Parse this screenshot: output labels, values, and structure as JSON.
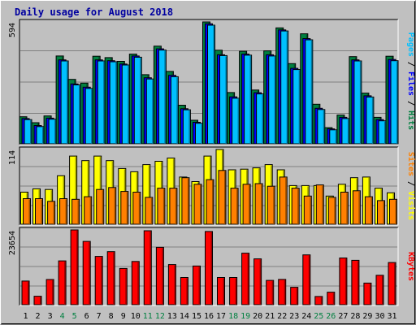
{
  "chart_data": {
    "type": "bar",
    "title": "Daily usage for August 2018",
    "categories": [
      "1",
      "2",
      "3",
      "4",
      "5",
      "6",
      "7",
      "8",
      "9",
      "10",
      "11",
      "12",
      "13",
      "14",
      "15",
      "16",
      "17",
      "18",
      "19",
      "20",
      "21",
      "22",
      "23",
      "24",
      "25",
      "26",
      "27",
      "28",
      "29",
      "30",
      "31"
    ],
    "weekend_days": [
      "4",
      "5",
      "11",
      "12",
      "18",
      "19",
      "25",
      "26"
    ],
    "panels": [
      {
        "id": "pages-files-hits",
        "ymax_label": "594",
        "ymax": 594,
        "right_label": [
          {
            "text": "Pages",
            "color": "#00c0ff"
          },
          {
            "text": " / ",
            "color": "#000000"
          },
          {
            "text": "Files",
            "color": "#0000ff"
          },
          {
            "text": " / ",
            "color": "#000000"
          },
          {
            "text": "Hits",
            "color": "#008040"
          }
        ],
        "series": [
          {
            "name": "Hits",
            "color": "#008040",
            "values": [
              132,
              103,
              136,
              428,
              314,
              296,
              427,
              420,
              402,
              437,
              337,
              476,
              353,
              188,
              115,
              594,
              456,
              250,
              451,
              262,
              453,
              565,
              391,
              536,
              193,
              79,
              140,
              425,
              247,
              129,
              427
            ]
          },
          {
            "name": "Files",
            "color": "#0000ff",
            "values": [
              123,
              89,
              125,
              409,
              292,
              276,
              409,
              405,
              389,
              428,
              322,
              463,
              334,
              171,
              105,
              585,
              434,
              229,
              437,
              249,
              434,
              555,
              368,
              513,
              173,
              73,
              129,
              409,
              234,
              118,
              411
            ]
          },
          {
            "name": "Pages",
            "color": "#00c0ff",
            "values": [
              118,
              84,
              120,
              404,
              287,
              270,
              404,
              400,
              384,
              422,
              316,
              457,
              327,
              166,
              100,
              578,
              430,
              222,
              432,
              243,
              428,
              550,
              362,
              507,
              167,
              68,
              123,
              404,
              228,
              112,
              405
            ]
          }
        ]
      },
      {
        "id": "visits-sites",
        "ymax_label": "114",
        "ymax": 114,
        "right_label": [
          {
            "text": "Sites",
            "color": "#ff8000"
          },
          {
            "text": " / ",
            "color": "#000000"
          },
          {
            "text": "Visits",
            "color": "#ffff00"
          }
        ],
        "series": [
          {
            "name": "Visits",
            "color": "#ffff00",
            "values": [
              49,
              54,
              53,
              74,
              104,
              97,
              104,
              97,
              85,
              80,
              91,
              96,
              101,
              72,
              65,
              104,
              114,
              83,
              84,
              86,
              91,
              83,
              59,
              59,
              59,
              43,
              61,
              71,
              72,
              55,
              48
            ]
          },
          {
            "name": "Sites",
            "color": "#ff8000",
            "values": [
              39,
              39,
              35,
              39,
              38,
              42,
              53,
              56,
              50,
              49,
              41,
              55,
              55,
              71,
              61,
              68,
              82,
              55,
              61,
              62,
              58,
              72,
              55,
              43,
              60,
              41,
              49,
              51,
              42,
              36,
              38
            ]
          }
        ]
      },
      {
        "id": "kbytes",
        "ymax_label": "23654",
        "ymax": 23654,
        "right_label": [
          {
            "text": "KBytes",
            "color": "#ff0000"
          }
        ],
        "series": [
          {
            "name": "KBytes",
            "color": "#ff0000",
            "values": [
              7480,
              2670,
              7980,
              13850,
              23654,
              20030,
              15270,
              16790,
              11460,
              13670,
              23400,
              18160,
              12710,
              8620,
              12240,
              23160,
              8620,
              8620,
              16290,
              14500,
              7700,
              7990,
              5490,
              15760,
              2590,
              3970,
              14790,
              14040,
              6850,
              9320,
              13340
            ]
          }
        ]
      }
    ]
  }
}
